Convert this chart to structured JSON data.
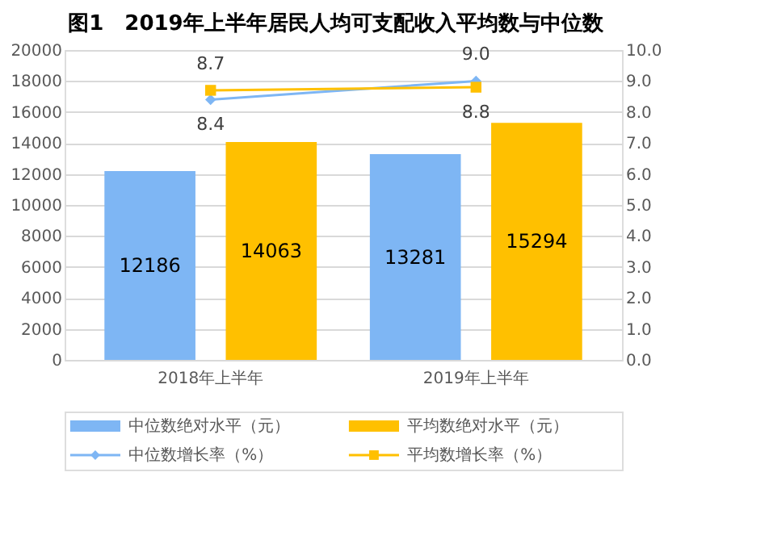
{
  "chart_data": {
    "type": "bar",
    "title": "图1　2019年上半年居民人均可支配收入平均数与中位数",
    "categories": [
      "2018年上半年",
      "2019年上半年"
    ],
    "series": [
      {
        "name": "中位数绝对水平（元）",
        "color": "#7eb6f4",
        "values": [
          12186,
          13281
        ]
      },
      {
        "name": "平均数绝对水平（元）",
        "color": "#ffc000",
        "values": [
          14063,
          15294
        ]
      },
      {
        "name": "中位数增长率（%）",
        "type": "line",
        "axis": "y2",
        "marker": "diamond",
        "color": "#7eb6f4",
        "values": [
          8.4,
          9.0
        ],
        "value_labels": [
          "8.4",
          "9.0"
        ]
      },
      {
        "name": "平均数增长率（%）",
        "type": "line",
        "axis": "y2",
        "marker": "square",
        "color": "#ffc000",
        "values": [
          8.7,
          8.8
        ],
        "value_labels": [
          "8.7",
          "8.8"
        ]
      }
    ],
    "ylim": [
      0,
      20000
    ],
    "yticks": [
      0,
      2000,
      4000,
      6000,
      8000,
      10000,
      12000,
      14000,
      16000,
      18000,
      20000
    ],
    "y2lim": [
      0,
      10
    ],
    "y2ticks": [
      {
        "value": 0,
        "label": "0.0"
      },
      {
        "value": 1,
        "label": "1.0"
      },
      {
        "value": 2,
        "label": "2.0"
      },
      {
        "value": 3,
        "label": "3.0"
      },
      {
        "value": 4,
        "label": "4.0"
      },
      {
        "value": 5,
        "label": "5.0"
      },
      {
        "value": 6,
        "label": "6.0"
      },
      {
        "value": 7,
        "label": "7.0"
      },
      {
        "value": 8,
        "label": "8.0"
      },
      {
        "value": 9,
        "label": "9.0"
      },
      {
        "value": 10,
        "label": "10.0"
      }
    ],
    "data_labels": true,
    "grid": "y",
    "legend": "bottom"
  }
}
